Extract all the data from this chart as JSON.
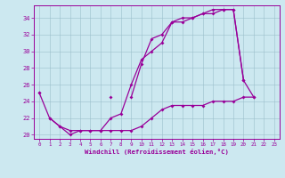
{
  "xlabel": "Windchill (Refroidissement éolien,°C)",
  "xlim": [
    -0.5,
    23.5
  ],
  "ylim": [
    19.5,
    35.5
  ],
  "yticks": [
    20,
    22,
    24,
    26,
    28,
    30,
    32,
    34
  ],
  "x_ticks": [
    0,
    1,
    2,
    3,
    4,
    5,
    6,
    7,
    8,
    9,
    10,
    11,
    12,
    13,
    14,
    15,
    16,
    17,
    18,
    19,
    20,
    21,
    22,
    23
  ],
  "bg_color": "#cce8f0",
  "line_color": "#990099",
  "line1_y": [
    25.0,
    22.0,
    21.0,
    20.5,
    20.5,
    20.5,
    20.5,
    22.0,
    22.5,
    26.0,
    29.0,
    30.0,
    31.0,
    33.5,
    33.5,
    34.0,
    34.5,
    34.5,
    35.0,
    35.0,
    26.5,
    null,
    null,
    null
  ],
  "line2_y": [
    25.0,
    null,
    null,
    null,
    null,
    null,
    null,
    24.5,
    null,
    24.5,
    28.5,
    31.5,
    32.0,
    33.5,
    34.0,
    34.0,
    34.5,
    35.0,
    35.0,
    35.0,
    26.5,
    24.5,
    null,
    null
  ],
  "line3_y": [
    null,
    22.0,
    21.0,
    20.0,
    20.5,
    20.5,
    20.5,
    20.5,
    20.5,
    20.5,
    21.0,
    22.0,
    23.0,
    23.5,
    23.5,
    23.5,
    23.5,
    24.0,
    24.0,
    24.0,
    24.5,
    24.5,
    null,
    null
  ]
}
